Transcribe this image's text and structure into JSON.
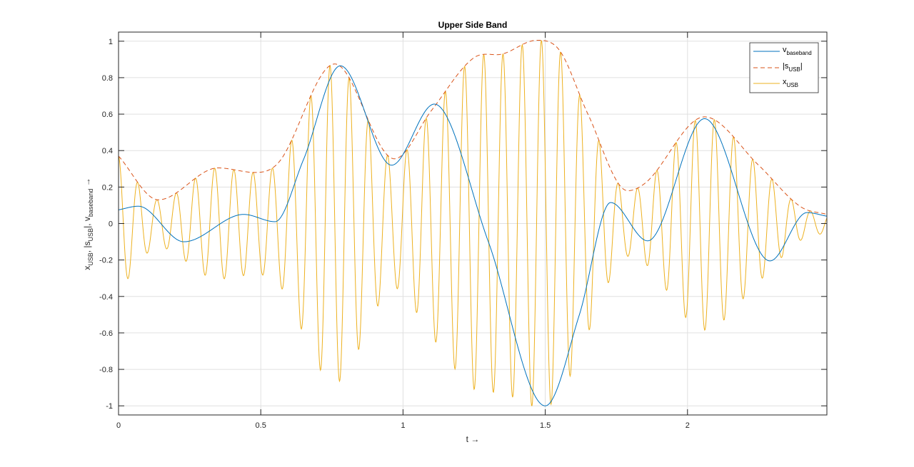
{
  "chart_data": {
    "type": "line",
    "title": "Upper Side Band",
    "xlabel": "t →",
    "ylabel_parts": [
      "x",
      "USB",
      ", |s",
      "USB",
      "|, v",
      "baseband",
      " →"
    ],
    "ylabel": "x_USB, |s_USB|, v_baseband →",
    "xlim": [
      0,
      2.49
    ],
    "ylim": [
      -1.05,
      1.05
    ],
    "grid": true,
    "legend_position": "northeast",
    "x_ticks": [
      0,
      0.5,
      1,
      1.5,
      2
    ],
    "x_tick_labels": [
      "0",
      "0.5",
      "1",
      "1.5",
      "2"
    ],
    "y_ticks": [
      -1,
      -0.8,
      -0.6,
      -0.4,
      -0.2,
      0,
      0.2,
      0.4,
      0.6,
      0.8,
      1
    ],
    "y_tick_labels": [
      "-1",
      "-0.8",
      "-0.6",
      "-0.4",
      "-0.2",
      "0",
      "0.2",
      "0.4",
      "0.6",
      "0.8",
      "1"
    ],
    "series": [
      {
        "name": "v_baseband",
        "legend_main": "v",
        "legend_sub": "baseband",
        "legend_prefix": "",
        "legend_suffix": "",
        "color": "#0072BD",
        "style": "solid",
        "x": [
          0,
          0.07,
          0.23,
          0.44,
          0.55,
          0.65,
          0.78,
          0.96,
          1.11,
          1.3,
          1.5,
          1.62,
          1.73,
          1.86,
          2.06,
          2.29,
          2.42,
          2.49
        ],
        "y": [
          0.075,
          0.095,
          -0.1,
          0.05,
          0.01,
          0.35,
          0.865,
          0.32,
          0.655,
          -0.1,
          -1.0,
          -0.5,
          0.115,
          -0.095,
          0.575,
          -0.205,
          0.06,
          0.04
        ]
      },
      {
        "name": "|s_USB|",
        "legend_main": "s",
        "legend_sub": "USB",
        "legend_prefix": "|",
        "legend_suffix": "|",
        "color": "#D95319",
        "style": "dashed",
        "x": [
          0,
          0.14,
          0.35,
          0.48,
          0.56,
          0.76,
          0.97,
          1.1,
          1.25,
          1.35,
          1.47,
          1.55,
          1.65,
          1.79,
          1.85,
          2.06,
          2.25,
          2.4,
          2.49
        ],
        "y": [
          0.37,
          0.13,
          0.305,
          0.28,
          0.33,
          0.875,
          0.355,
          0.62,
          0.91,
          0.93,
          1.005,
          0.95,
          0.6,
          0.18,
          0.22,
          0.585,
          0.32,
          0.09,
          0.05
        ]
      },
      {
        "name": "x_USB",
        "legend_main": "x",
        "legend_sub": "USB",
        "legend_prefix": "",
        "legend_suffix": "",
        "color": "#EDB120",
        "style": "solid",
        "description": "Modulated carrier (~15 Hz) bounded by |s_USB|",
        "carrier_freq": 14.8,
        "carrier_phase": 0.0
      }
    ]
  }
}
